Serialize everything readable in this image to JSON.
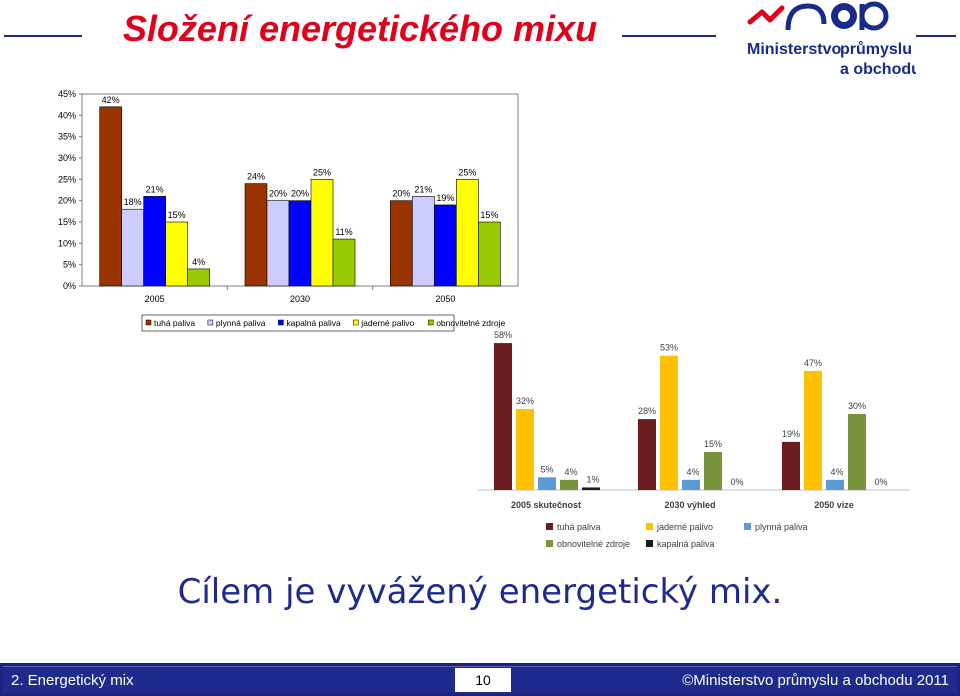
{
  "slide": {
    "title": "Složení energetického mixu",
    "subtitle": "Cílem je vyvážený energetický mix.",
    "logo": {
      "mark": "mpo",
      "line1": "Ministerstvo",
      "line2": "průmyslu",
      "line3": "a obchodu"
    }
  },
  "footer": {
    "left": "2. Energetický mix",
    "page": "10",
    "right": "©Ministerstvo průmyslu a obchodu 2011"
  },
  "colors": {
    "title": "#e0001b",
    "navy": "#1a237e",
    "subtitle": "#1f2a8a"
  },
  "chart_data": [
    {
      "type": "bar",
      "categories": [
        "2005",
        "2030",
        "2050"
      ],
      "ylim": [
        0,
        45
      ],
      "yticks": [
        "0%",
        "5%",
        "10%",
        "15%",
        "20%",
        "25%",
        "30%",
        "35%",
        "40%",
        "45%"
      ],
      "legend_position": "bottom",
      "series": [
        {
          "name": "tuhá paliva",
          "color": "#993300",
          "values": [
            42,
            24,
            20
          ],
          "labels": [
            "42%",
            "24%",
            "20%"
          ]
        },
        {
          "name": "plynná paliva",
          "color": "#ccccff",
          "values": [
            18,
            20,
            21
          ],
          "labels": [
            "18%",
            "20%",
            "21%"
          ]
        },
        {
          "name": "kapalná paliva",
          "color": "#0000ff",
          "values": [
            21,
            20,
            19
          ],
          "labels": [
            "21%",
            "20%",
            "19%"
          ]
        },
        {
          "name": "jaderné palivo",
          "color": "#ffff00",
          "values": [
            15,
            25,
            25
          ],
          "labels": [
            "15%",
            "25%",
            "25%"
          ]
        },
        {
          "name": "obnovitelné zdroje",
          "color": "#99cc00",
          "values": [
            4,
            11,
            15
          ],
          "labels": [
            "4%",
            "11%",
            "15%"
          ]
        }
      ]
    },
    {
      "type": "bar",
      "categories": [
        "2005 skutečnost",
        "2030 výhled",
        "2050 vize"
      ],
      "ylim": [
        0,
        60
      ],
      "legend_position": "bottom",
      "series": [
        {
          "name": "tuhá paliva",
          "color": "#6b1d1d",
          "values": [
            58,
            28,
            19
          ],
          "labels": [
            "58%",
            "28%",
            "19%"
          ]
        },
        {
          "name": "jaderné palivo",
          "color": "#ffc000",
          "values": [
            32,
            53,
            47
          ],
          "labels": [
            "32%",
            "53%",
            "47%"
          ]
        },
        {
          "name": "plynná paliva",
          "color": "#5b9bd5",
          "values": [
            5,
            4,
            4
          ],
          "labels": [
            "5%",
            "4%",
            "4%"
          ]
        },
        {
          "name": "obnovitelné zdroje",
          "color": "#77933c",
          "values": [
            4,
            15,
            30
          ],
          "labels": [
            "4%",
            "15%",
            "30%"
          ]
        },
        {
          "name": "kapalná paliva",
          "color": "#1a1a1a",
          "values": [
            1,
            0,
            0
          ],
          "labels": [
            "1%",
            "0%",
            "0%"
          ]
        }
      ]
    }
  ]
}
